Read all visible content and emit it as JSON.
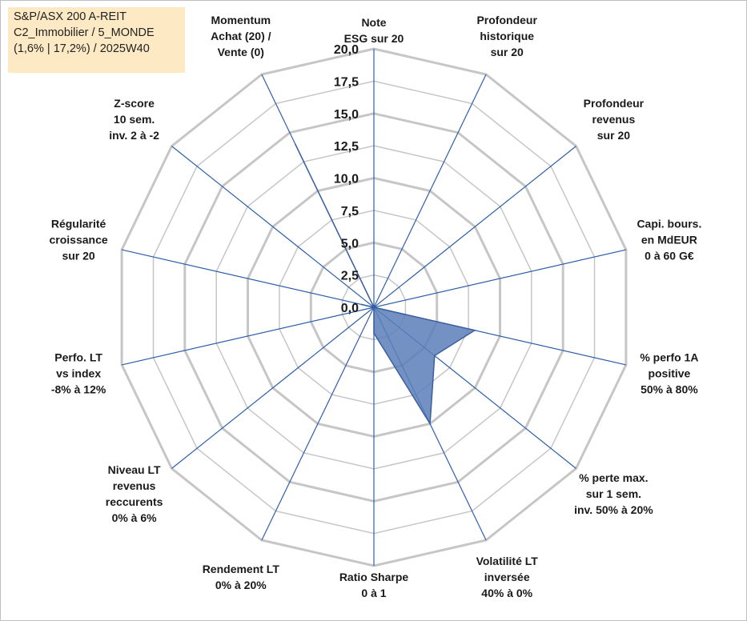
{
  "title_box": {
    "lines": [
      "S&P/ASX 200 A-REIT",
      "C2_Immobilier / 5_MONDE",
      "(1,6% | 17,2%) / 2025W40"
    ],
    "background": "#fde9c4"
  },
  "chart_data": {
    "type": "radar",
    "rmin": 0,
    "rmax": 20,
    "tick_step": 2.5,
    "ticks": [
      "0,0",
      "2,5",
      "5,0",
      "7,5",
      "10,0",
      "12,5",
      "15,0",
      "17,5",
      "20,0"
    ],
    "grid": true,
    "axes": [
      {
        "label": [
          "Note",
          "ESG sur 20"
        ]
      },
      {
        "label": [
          "Profondeur",
          "historique",
          "sur 20"
        ]
      },
      {
        "label": [
          "Profondeur",
          "revenus",
          "sur 20"
        ]
      },
      {
        "label": [
          "Capi. bours.",
          "en MdEUR",
          "0 à 60 G€"
        ]
      },
      {
        "label": [
          "% perfo 1A",
          "positive",
          "50% à 80%"
        ]
      },
      {
        "label": [
          "% perte max.",
          "sur 1 sem.",
          "inv. 50% à 20%"
        ]
      },
      {
        "label": [
          "Volatilité LT",
          "inversée",
          "40% à 0%"
        ]
      },
      {
        "label": [
          "Ratio Sharpe",
          "0 à 1"
        ]
      },
      {
        "label": [
          "Rendement LT",
          "0% à 20%"
        ]
      },
      {
        "label": [
          "Niveau LT",
          "revenus",
          "reccurents",
          "0% à 6%"
        ]
      },
      {
        "label": [
          "Perfo. LT",
          "vs index",
          "-8% à 12%"
        ]
      },
      {
        "label": [
          "Régularité",
          "croissance",
          "sur 20"
        ]
      },
      {
        "label": [
          "Z-score",
          "10 sem.",
          "inv. 2 à -2"
        ]
      },
      {
        "label": [
          "Momentum",
          "Achat (20) /",
          "Vente (0)"
        ]
      }
    ],
    "series": [
      {
        "values": [
          0,
          0,
          0,
          0,
          8,
          6,
          10,
          2,
          0,
          0,
          0,
          1,
          0,
          14
        ]
      }
    ],
    "colors": {
      "fill": "#5b7fb8",
      "stroke": "#3a5f9f",
      "spoke": "#2e5fa8",
      "grid": "#c6c6c6"
    }
  }
}
